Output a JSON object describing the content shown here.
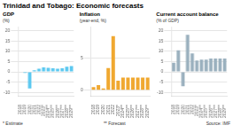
{
  "title": "Trinidad and Tobago: Economic forecasts",
  "annotations": [
    "* Estimate",
    "** Forecast",
    "Source: IMF"
  ],
  "chart_data": [
    {
      "type": "bar",
      "title": "GDP",
      "ylabel": "(%)",
      "categories": [
        "2018",
        "2019",
        "2020",
        "2021",
        "2022",
        "2023*",
        "2024**",
        "2025**",
        "2026**",
        "2027**",
        "2028**",
        "2029**"
      ],
      "values": [
        -0.2,
        -0.5,
        -8.0,
        0.8,
        1.5,
        2.2,
        2.0,
        1.8,
        1.5,
        1.8,
        2.5,
        2.8
      ],
      "color": "#5bc8f0",
      "ylim": [
        -12,
        22
      ],
      "yticks": [
        -10,
        -5,
        0,
        5,
        10,
        15,
        20
      ],
      "grid": true
    },
    {
      "type": "bar",
      "title": "Inflation",
      "ylabel": "(year-end, %)",
      "categories": [
        "2018",
        "2019",
        "2020",
        "2021",
        "2022",
        "2023*",
        "2024**",
        "2025**",
        "2026**",
        "2027**",
        "2028**",
        "2029**"
      ],
      "values": [
        0.5,
        0.8,
        0.3,
        3.5,
        8.5,
        1.5,
        2.0,
        2.0,
        2.0,
        2.0,
        2.0,
        2.0
      ],
      "color": "#f0a830",
      "ylim": [
        -1,
        10
      ],
      "yticks": [
        0,
        5
      ],
      "grid": true
    },
    {
      "type": "bar",
      "title": "Current account balance",
      "ylabel": "(% of GDP)",
      "categories": [
        "2018",
        "2019",
        "2020",
        "2021",
        "2022",
        "2023*",
        "2024**",
        "2025**",
        "2026**",
        "2027**",
        "2028**",
        "2029**"
      ],
      "values": [
        4.5,
        10.5,
        -7.0,
        18.0,
        9.0,
        5.5,
        6.0,
        6.0,
        6.5,
        6.5,
        6.5,
        6.5
      ],
      "color": "#9ab0be",
      "ylim": [
        -12,
        22
      ],
      "yticks": [
        -10,
        -5,
        0,
        5,
        10,
        15,
        20
      ],
      "grid": true
    }
  ]
}
